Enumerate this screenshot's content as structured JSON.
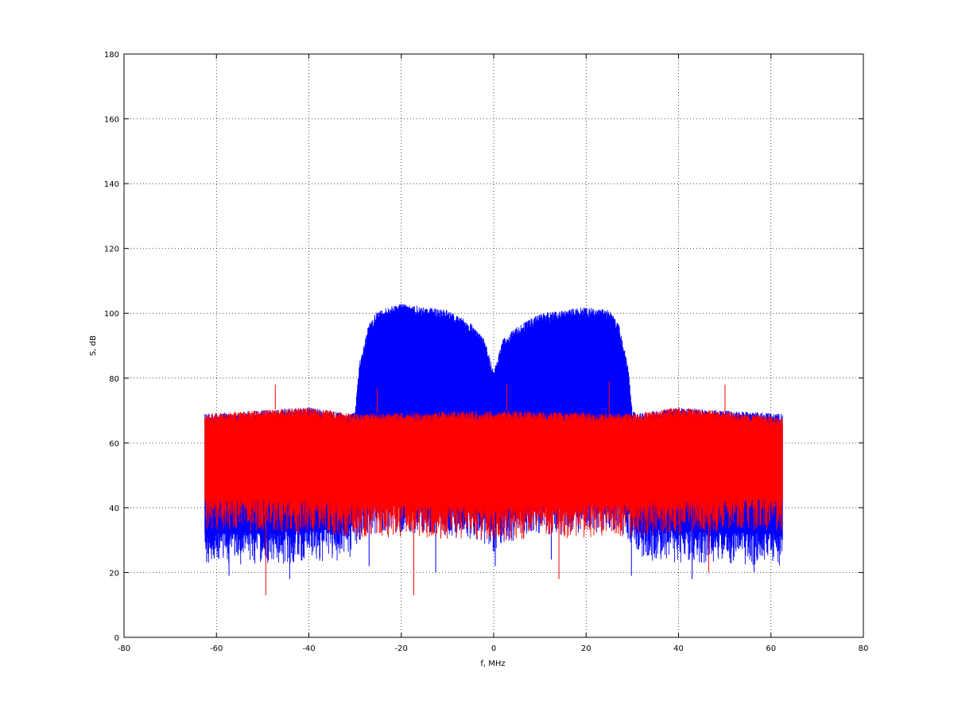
{
  "chart_data": {
    "type": "line",
    "title": "",
    "xlabel": "f, MHz",
    "ylabel": "S, dB",
    "xlim": [
      -80,
      80
    ],
    "ylim": [
      0,
      180
    ],
    "x_ticks": [
      -80,
      -60,
      -40,
      -20,
      0,
      20,
      40,
      60,
      80
    ],
    "y_ticks": [
      0,
      20,
      40,
      60,
      80,
      100,
      120,
      140,
      160,
      180
    ],
    "grid": true,
    "series": [
      {
        "color": "#0000ff",
        "x_range": [
          -62.5,
          62.5
        ],
        "envelope": {
          "f": [
            -62.5,
            -40,
            -31,
            -30,
            -29,
            -27,
            -25,
            -20,
            -10,
            -5,
            -2,
            0,
            2,
            5,
            10,
            20,
            25,
            27,
            29,
            30,
            31,
            40,
            62.5
          ],
          "upper": [
            69,
            71,
            69,
            70,
            85,
            97,
            101,
            103,
            101,
            97,
            92,
            82,
            92,
            96,
            100,
            102,
            101,
            97,
            85,
            70,
            69,
            71,
            69
          ],
          "lower": [
            32,
            33,
            34,
            38,
            40,
            42,
            42,
            42,
            41,
            40,
            38,
            36,
            38,
            40,
            41,
            42,
            42,
            42,
            40,
            38,
            34,
            33,
            32
          ]
        },
        "minima_dB": [
          19,
          18,
          22,
          20,
          22,
          24,
          19,
          18,
          20
        ]
      },
      {
        "color": "#ff0000",
        "x_range": [
          -62.5,
          62.5
        ],
        "envelope": {
          "f": [
            -62.5,
            -40,
            -30,
            0,
            30,
            40,
            62.5
          ],
          "upper": [
            69,
            71,
            69,
            70,
            69,
            71,
            68
          ],
          "lower": [
            43,
            42,
            41,
            40,
            41,
            42,
            43
          ]
        },
        "peaks_dB": [
          78,
          77,
          78,
          79,
          78
        ],
        "minima_dB": [
          13,
          13,
          18,
          20
        ]
      }
    ]
  }
}
